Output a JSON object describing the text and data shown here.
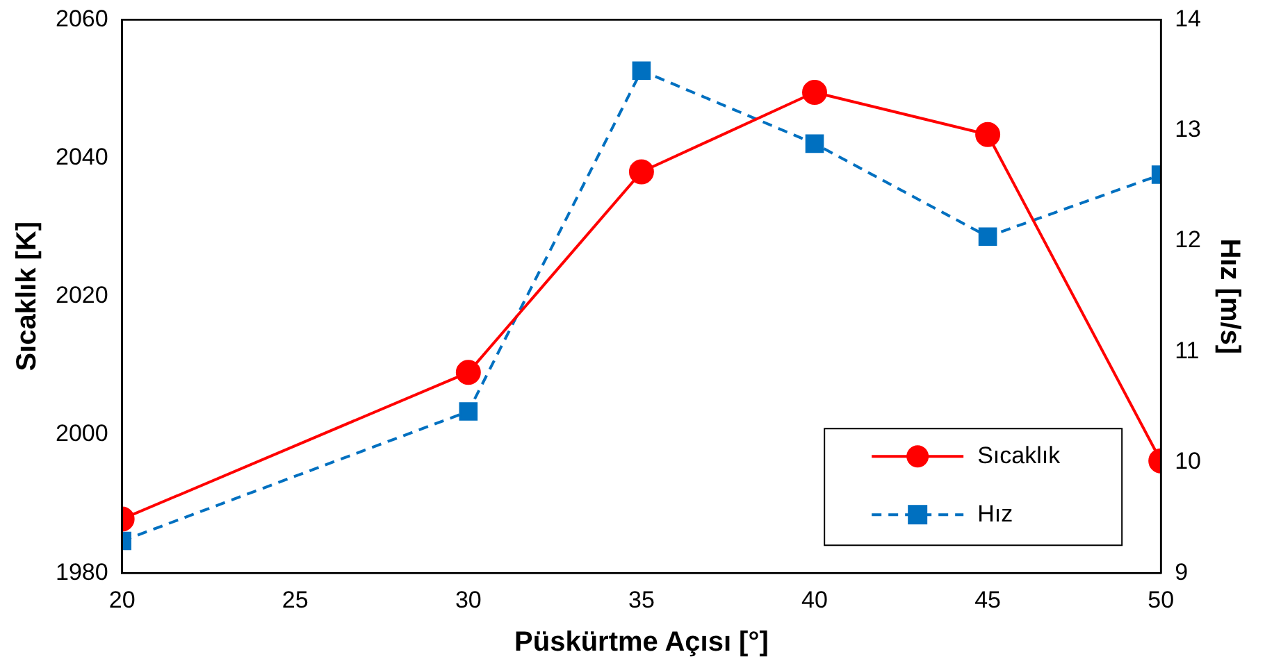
{
  "chart_data": {
    "type": "line",
    "xlabel": "Püskürtme Açısı [°]",
    "ylabel": "Sıcaklık [K]",
    "y2label": "Hız [m/s]",
    "x": [
      20,
      30,
      35,
      40,
      45,
      50
    ],
    "series": [
      {
        "name": "Sıcaklık",
        "color": "#ff0000",
        "values": [
          1987.8,
          2009.0,
          2038.0,
          2049.5,
          2043.4,
          1996.2
        ],
        "marker": "circle",
        "line_style": "solid"
      },
      {
        "name": "Hız",
        "color": "#0070c0",
        "values": [
          9.29,
          10.46,
          13.54,
          12.88,
          12.04,
          12.6
        ],
        "axis": "y2",
        "marker": "square",
        "line_style": "dashed"
      }
    ],
    "xlim": [
      20,
      50
    ],
    "xticks": [
      20,
      25,
      30,
      35,
      40,
      45,
      50
    ],
    "ylim": [
      1980,
      2060
    ],
    "yticks": [
      1980,
      2000,
      2020,
      2040,
      2060
    ],
    "y2lim": [
      9,
      14
    ],
    "y2ticks": [
      9,
      10,
      11,
      12,
      13,
      14
    ],
    "grid": false,
    "legend": "bottom right"
  }
}
